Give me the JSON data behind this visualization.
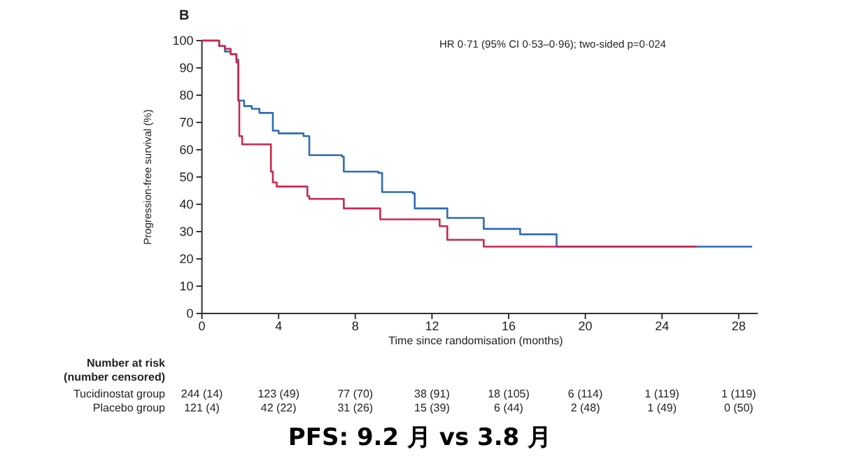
{
  "chart_data": {
    "type": "step",
    "title": "PFS:  9.2 月 vs 3.8 月",
    "ylabel": "Progression-free survival (%)",
    "xlabel": "Time since randomisation (months)",
    "xlim": [
      0,
      29
    ],
    "xticks": [
      0,
      4,
      8,
      12,
      16,
      20,
      24,
      28
    ],
    "ylim": [
      0,
      100
    ],
    "yticks": [
      0,
      10,
      20,
      30,
      40,
      50,
      60,
      70,
      80,
      90,
      100
    ],
    "grid": false,
    "series": [
      {
        "color": "#2e6db4",
        "x": [
          0,
          0.9,
          1.2,
          1.5,
          1.8,
          1.9,
          2.2,
          2.6,
          3.0,
          3.7,
          4.0,
          5.3,
          5.6,
          7.3,
          7.4,
          9.2,
          9.4,
          11.0,
          11.1,
          12.8,
          14.7,
          16.6,
          18.5,
          28.7
        ],
        "values": [
          100,
          98,
          96,
          95,
          93,
          78,
          76,
          75,
          73.5,
          67,
          66,
          65,
          58,
          57.5,
          52,
          51.5,
          44.5,
          44,
          38.5,
          35,
          31,
          29,
          24.5,
          24.5
        ]
      },
      {
        "color": "#c8294f",
        "x": [
          0,
          0.9,
          1.2,
          1.5,
          1.8,
          1.9,
          1.95,
          2.1,
          3.6,
          3.7,
          3.9,
          5.5,
          5.6,
          7.4,
          9.3,
          12.4,
          12.8,
          14.7,
          25.8
        ],
        "values": [
          100,
          98,
          97,
          95,
          92,
          78,
          65,
          62,
          52,
          48,
          46.5,
          43,
          42,
          38.5,
          34.5,
          32,
          27,
          24.5,
          24.5
        ]
      }
    ],
    "annotations": [
      "B",
      "HR 0·71 (95% CI 0·53–0·96); two-sided p=0·024",
      "Number at risk",
      "(number censored)",
      "Tucidinostat group",
      "244 (14)",
      "123 (49)",
      "77 (70)",
      "38 (91)",
      "18 (105)",
      "6 (114)",
      "1 (119)",
      "1 (119)",
      "Placebo group",
      "121 (4)",
      "42 (22)",
      "31 (26)",
      "15 (39)",
      "6 (44)",
      "2 (48)",
      "1 (49)",
      "0 (50)"
    ]
  }
}
